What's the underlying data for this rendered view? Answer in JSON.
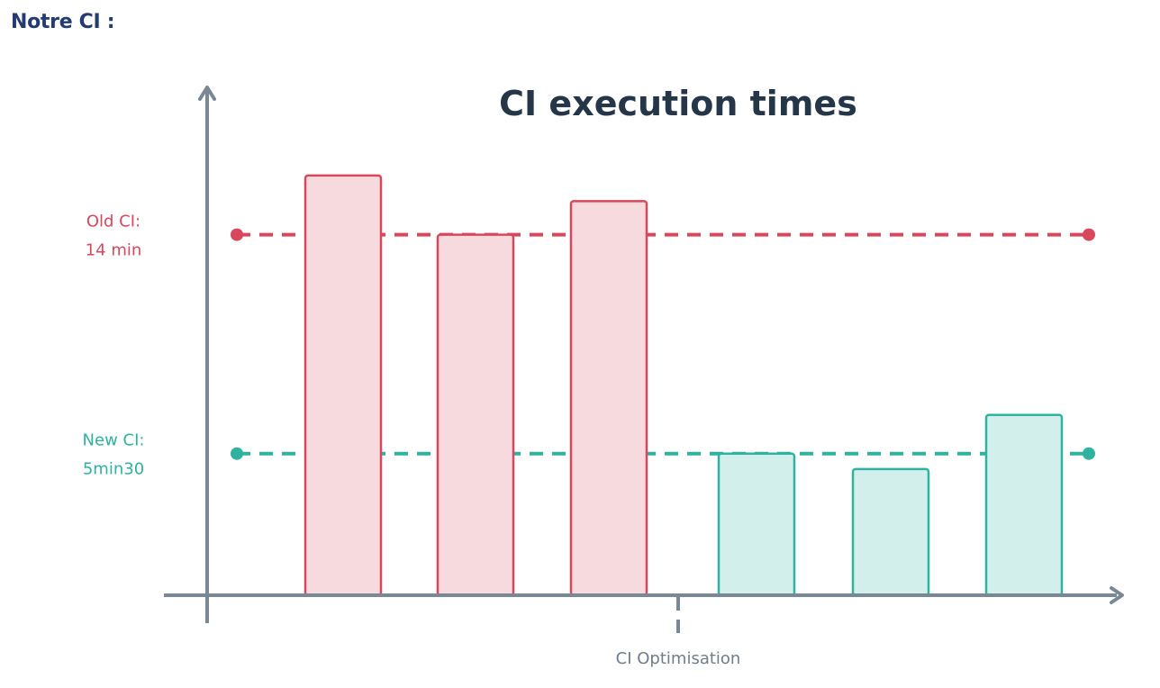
{
  "page": {
    "heading": "Notre CI :"
  },
  "colors": {
    "old": "#d9475c",
    "old_fill": "#f6dade",
    "new": "#2fb3a0",
    "new_fill": "#d2efec",
    "axis": "#7a8794",
    "title": "#253648",
    "heading": "#233b73"
  },
  "chart_data": {
    "type": "bar",
    "title": "CI execution times",
    "xlabel": "",
    "ylabel": "",
    "ylim": [
      0,
      20
    ],
    "grid": false,
    "legend": "none",
    "series": [
      {
        "group": "old",
        "values": [
          16.3,
          14.0,
          15.3
        ]
      },
      {
        "group": "new",
        "values": [
          5.5,
          4.9,
          7.0
        ]
      }
    ],
    "reference_lines": [
      {
        "key": "old",
        "value": 14,
        "label_lines": [
          "Old CI:",
          "14 min"
        ]
      },
      {
        "key": "new",
        "value": 5.5,
        "label_lines": [
          "New CI:",
          "5min30"
        ]
      }
    ],
    "x_marker": {
      "label": "CI Optimisation",
      "after_index": 2
    }
  }
}
